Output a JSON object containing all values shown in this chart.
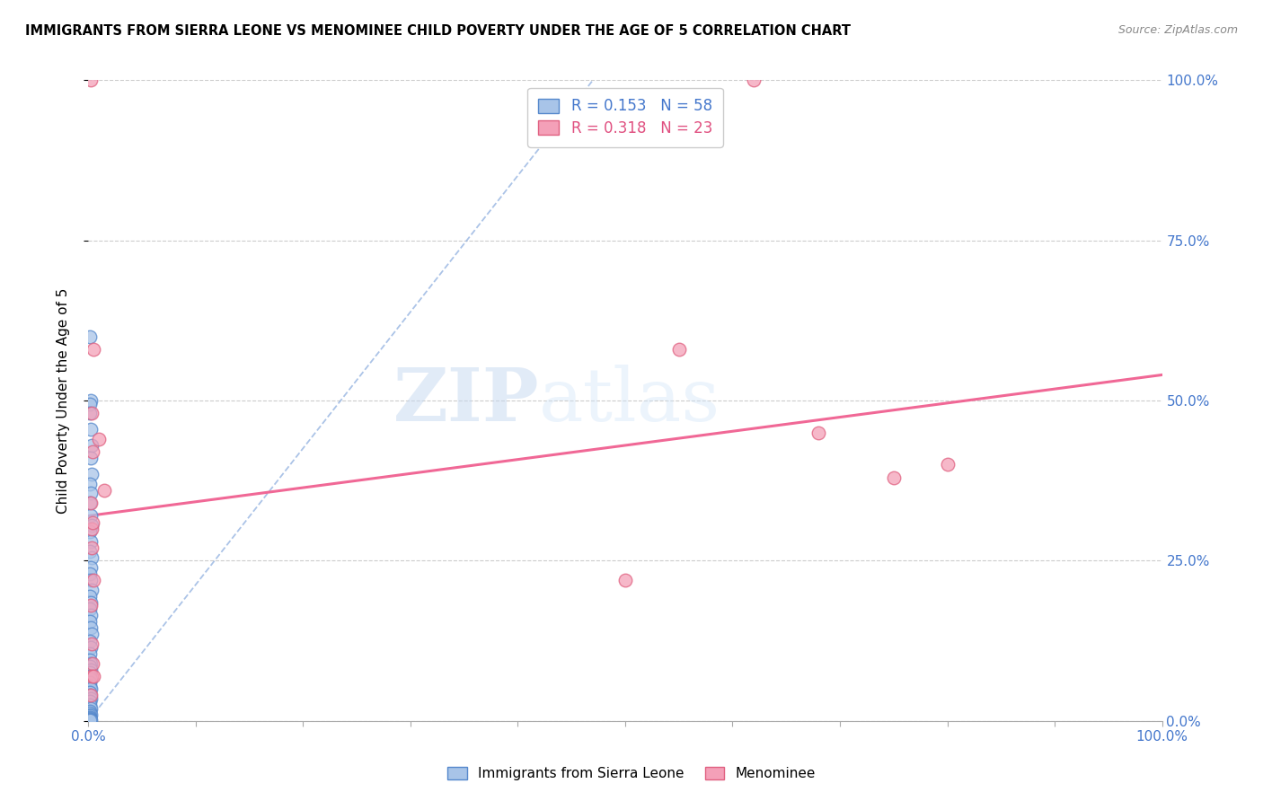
{
  "title": "IMMIGRANTS FROM SIERRA LEONE VS MENOMINEE CHILD POVERTY UNDER THE AGE OF 5 CORRELATION CHART",
  "source": "Source: ZipAtlas.com",
  "ylabel": "Child Poverty Under the Age of 5",
  "ytick_labels": [
    "0.0%",
    "25.0%",
    "50.0%",
    "75.0%",
    "100.0%"
  ],
  "ytick_values": [
    0,
    0.25,
    0.5,
    0.75,
    1.0
  ],
  "xtick_values": [
    0,
    0.1,
    0.2,
    0.3,
    0.4,
    0.5,
    0.6,
    0.7,
    0.8,
    0.9,
    1.0
  ],
  "blue_R": 0.153,
  "blue_N": 58,
  "pink_R": 0.318,
  "pink_N": 23,
  "legend_label_blue": "Immigrants from Sierra Leone",
  "legend_label_pink": "Menominee",
  "watermark_zip": "ZIP",
  "watermark_atlas": "atlas",
  "blue_color": "#a8c4e8",
  "pink_color": "#f4a0b8",
  "blue_edge_color": "#5588cc",
  "pink_edge_color": "#e06080",
  "blue_line_color": "#88aadd",
  "pink_line_color": "#f06090",
  "blue_scatter_x": [
    0.001,
    0.002,
    0.001,
    0.001,
    0.002,
    0.003,
    0.002,
    0.003,
    0.001,
    0.002,
    0.001,
    0.002,
    0.003,
    0.001,
    0.002,
    0.001,
    0.003,
    0.002,
    0.001,
    0.002,
    0.003,
    0.001,
    0.002,
    0.001,
    0.002,
    0.001,
    0.002,
    0.003,
    0.001,
    0.002,
    0.001,
    0.001,
    0.002,
    0.001,
    0.002,
    0.001,
    0.001,
    0.002,
    0.001,
    0.001,
    0.002,
    0.001,
    0.001,
    0.002,
    0.001,
    0.001,
    0.002,
    0.001,
    0.001,
    0.002,
    0.001,
    0.001,
    0.001,
    0.001,
    0.001,
    0.001,
    0.002,
    0.001
  ],
  "blue_scatter_y": [
    0.6,
    0.5,
    0.495,
    0.48,
    0.455,
    0.43,
    0.41,
    0.385,
    0.37,
    0.355,
    0.34,
    0.32,
    0.305,
    0.295,
    0.28,
    0.265,
    0.255,
    0.24,
    0.23,
    0.22,
    0.205,
    0.195,
    0.185,
    0.175,
    0.165,
    0.155,
    0.145,
    0.135,
    0.125,
    0.115,
    0.105,
    0.095,
    0.09,
    0.085,
    0.08,
    0.075,
    0.07,
    0.065,
    0.06,
    0.055,
    0.05,
    0.045,
    0.04,
    0.035,
    0.03,
    0.025,
    0.02,
    0.015,
    0.012,
    0.01,
    0.008,
    0.006,
    0.005,
    0.004,
    0.003,
    0.002,
    0.001,
    0.001
  ],
  "pink_scatter_x": [
    0.002,
    0.005,
    0.01,
    0.015,
    0.003,
    0.004,
    0.002,
    0.003,
    0.55,
    0.62,
    0.68,
    0.75,
    0.8,
    0.5,
    0.004,
    0.003,
    0.005,
    0.002,
    0.003,
    0.004,
    0.003,
    0.002,
    0.005
  ],
  "pink_scatter_y": [
    1.0,
    0.58,
    0.44,
    0.36,
    0.48,
    0.42,
    0.34,
    0.3,
    0.58,
    1.0,
    0.45,
    0.38,
    0.4,
    0.22,
    0.31,
    0.27,
    0.22,
    0.18,
    0.12,
    0.09,
    0.07,
    0.04,
    0.07
  ],
  "blue_trendline_x": [
    0.0,
    0.47
  ],
  "blue_trendline_y": [
    0.0,
    1.0
  ],
  "pink_trendline_x": [
    0.0,
    1.0
  ],
  "pink_trendline_y": [
    0.32,
    0.54
  ]
}
